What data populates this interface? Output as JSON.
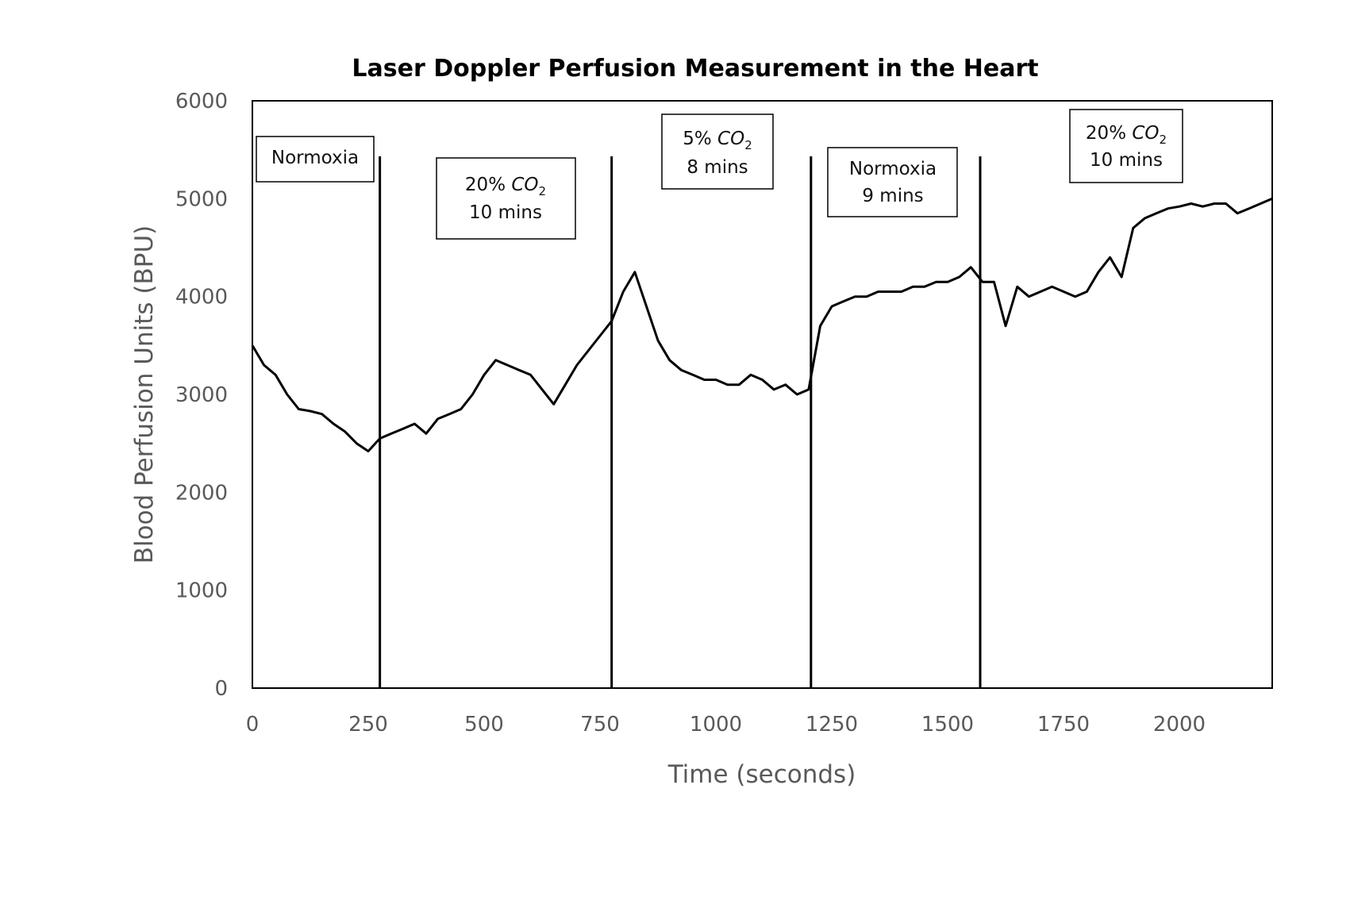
{
  "chart_data": {
    "type": "line",
    "title": "Laser Doppler Perfusion Measurement in the Heart",
    "xlabel": "Time (seconds)",
    "ylabel": "Blood Perfusion Units (BPU)",
    "xlim": [
      0,
      2200
    ],
    "ylim": [
      0,
      6000
    ],
    "xticks": [
      "0",
      "250",
      "500",
      "750",
      "1000",
      "1250",
      "1500",
      "1750",
      "2000"
    ],
    "yticks": [
      "0",
      "1000",
      "2000",
      "3000",
      "4000",
      "5000",
      "6000"
    ],
    "grid": false,
    "legend": "none",
    "line_color": "#000000",
    "phase_boundaries": [
      275,
      775,
      1205,
      1570
    ],
    "annotations": [
      {
        "id": "normoxia-1",
        "prefix": "Normoxia",
        "formula": "",
        "sub": "",
        "line2": ""
      },
      {
        "id": "co2-20-1",
        "prefix": "20% ",
        "formula": "CO",
        "sub": "2",
        "line2": "10 mins"
      },
      {
        "id": "co2-5",
        "prefix": "5% ",
        "formula": "CO",
        "sub": "2",
        "line2": "8 mins"
      },
      {
        "id": "normoxia-2",
        "prefix": "Normoxia",
        "formula": "",
        "sub": "",
        "line2": "9 mins"
      },
      {
        "id": "co2-20-2",
        "prefix": "20% ",
        "formula": "CO",
        "sub": "2",
        "line2": "10 mins"
      }
    ],
    "series": [
      {
        "values": [
          [
            0,
            3500
          ],
          [
            25,
            3300
          ],
          [
            50,
            3200
          ],
          [
            75,
            3000
          ],
          [
            100,
            2850
          ],
          [
            125,
            2830
          ],
          [
            150,
            2800
          ],
          [
            175,
            2700
          ],
          [
            200,
            2620
          ],
          [
            225,
            2500
          ],
          [
            250,
            2420
          ],
          [
            275,
            2550
          ],
          [
            300,
            2600
          ],
          [
            325,
            2650
          ],
          [
            350,
            2700
          ],
          [
            375,
            2600
          ],
          [
            400,
            2750
          ],
          [
            425,
            2800
          ],
          [
            450,
            2850
          ],
          [
            475,
            3000
          ],
          [
            500,
            3200
          ],
          [
            525,
            3350
          ],
          [
            550,
            3300
          ],
          [
            575,
            3250
          ],
          [
            600,
            3200
          ],
          [
            625,
            3050
          ],
          [
            650,
            2900
          ],
          [
            675,
            3100
          ],
          [
            700,
            3300
          ],
          [
            725,
            3450
          ],
          [
            750,
            3600
          ],
          [
            775,
            3750
          ],
          [
            800,
            4050
          ],
          [
            825,
            4250
          ],
          [
            850,
            3900
          ],
          [
            875,
            3550
          ],
          [
            900,
            3350
          ],
          [
            925,
            3250
          ],
          [
            950,
            3200
          ],
          [
            975,
            3150
          ],
          [
            1000,
            3150
          ],
          [
            1025,
            3100
          ],
          [
            1050,
            3100
          ],
          [
            1075,
            3200
          ],
          [
            1100,
            3150
          ],
          [
            1125,
            3050
          ],
          [
            1150,
            3100
          ],
          [
            1175,
            3000
          ],
          [
            1200,
            3050
          ],
          [
            1225,
            3700
          ],
          [
            1250,
            3900
          ],
          [
            1275,
            3950
          ],
          [
            1300,
            4000
          ],
          [
            1325,
            4000
          ],
          [
            1350,
            4050
          ],
          [
            1375,
            4050
          ],
          [
            1400,
            4050
          ],
          [
            1425,
            4100
          ],
          [
            1450,
            4100
          ],
          [
            1475,
            4150
          ],
          [
            1500,
            4150
          ],
          [
            1525,
            4200
          ],
          [
            1550,
            4300
          ],
          [
            1575,
            4150
          ],
          [
            1600,
            4150
          ],
          [
            1625,
            3700
          ],
          [
            1650,
            4100
          ],
          [
            1675,
            4000
          ],
          [
            1700,
            4050
          ],
          [
            1725,
            4100
          ],
          [
            1750,
            4050
          ],
          [
            1775,
            4000
          ],
          [
            1800,
            4050
          ],
          [
            1825,
            4250
          ],
          [
            1850,
            4400
          ],
          [
            1875,
            4200
          ],
          [
            1900,
            4700
          ],
          [
            1925,
            4800
          ],
          [
            1950,
            4850
          ],
          [
            1975,
            4900
          ],
          [
            2000,
            4920
          ],
          [
            2025,
            4950
          ],
          [
            2050,
            4920
          ],
          [
            2075,
            4950
          ],
          [
            2100,
            4950
          ],
          [
            2125,
            4850
          ],
          [
            2150,
            4900
          ],
          [
            2175,
            4950
          ],
          [
            2200,
            5000
          ]
        ]
      }
    ]
  }
}
